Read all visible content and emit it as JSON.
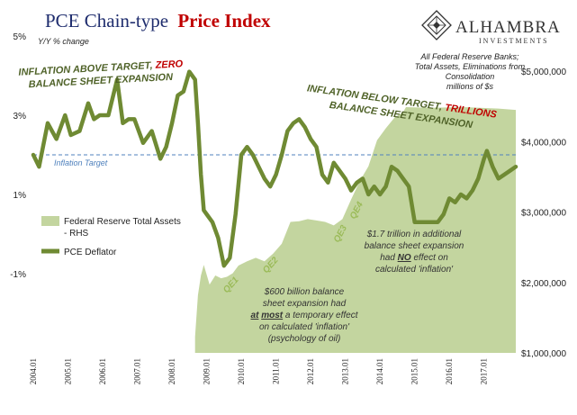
{
  "chart_data": {
    "type": "line",
    "title_prefix": "PCE Chain-type",
    "title_highlight": "Price Index",
    "subtitle_left": "Y/Y % change",
    "right_note": [
      "All Federal Reserve Banks;",
      "Total Assets, Eliminations from",
      "Consolidation",
      "millions of $s"
    ],
    "brand": {
      "name": "ALHAMBRA",
      "tagline": "INVESTMENTS"
    },
    "left_ticks": [
      {
        "v": 5,
        "label": "5%"
      },
      {
        "v": 3,
        "label": "3%"
      },
      {
        "v": 1,
        "label": "1%"
      },
      {
        "v": -1,
        "label": "-1%"
      }
    ],
    "right_ticks": [
      {
        "v": 5000000,
        "label": "$5,000,000"
      },
      {
        "v": 4000000,
        "label": "$4,000,000"
      },
      {
        "v": 3000000,
        "label": "$3,000,000"
      },
      {
        "v": 2000000,
        "label": "$2,000,000"
      },
      {
        "v": 1000000,
        "label": "$1,000,000"
      }
    ],
    "y_left_range": [
      -3,
      5
    ],
    "y_right_range": [
      1000000,
      5500000
    ],
    "x_range": [
      "2004-01",
      "2017-12"
    ],
    "x_ticks": [
      "2004.01",
      "2005.01",
      "2006.01",
      "2007.01",
      "2008.01",
      "2009.01",
      "2010.01",
      "2011.01",
      "2012.01",
      "2013.01",
      "2014.01",
      "2015.01",
      "2016.01",
      "2017.01"
    ],
    "inflation_target": {
      "value": 2.0,
      "label": "Inflation Target"
    },
    "legend": [
      {
        "label_lines": [
          "Federal Reserve Total Assets",
          "- RHS"
        ],
        "color": "#c3d59f"
      },
      {
        "label_lines": [
          "PCE Deflator"
        ],
        "color": "#6f8a33"
      }
    ],
    "series": [
      {
        "name": "Federal Reserve Total Assets - RHS",
        "axis": "right",
        "color": "#c3d59f",
        "x": [
          "2008-09",
          "2008-10",
          "2008-11",
          "2008-12",
          "2009-02",
          "2009-04",
          "2009-06",
          "2009-08",
          "2009-10",
          "2009-12",
          "2010-03",
          "2010-06",
          "2010-09",
          "2010-12",
          "2011-03",
          "2011-06",
          "2011-09",
          "2011-12",
          "2012-03",
          "2012-06",
          "2012-09",
          "2012-12",
          "2013-03",
          "2013-06",
          "2013-09",
          "2013-12",
          "2014-03",
          "2014-06",
          "2014-09",
          "2014-10",
          "2015-06",
          "2016-06",
          "2017-06",
          "2017-12"
        ],
        "values": [
          1230000,
          1820000,
          2100000,
          2250000,
          1970000,
          2100000,
          2060000,
          2080000,
          2130000,
          2240000,
          2300000,
          2350000,
          2300000,
          2410000,
          2550000,
          2860000,
          2870000,
          2900000,
          2880000,
          2860000,
          2810000,
          2900000,
          3180000,
          3440000,
          3650000,
          4020000,
          4190000,
          4340000,
          4420000,
          4490000,
          4480000,
          4490000,
          4470000,
          4450000
        ]
      },
      {
        "name": "PCE Deflator",
        "axis": "left",
        "color": "#6f8a33",
        "x": [
          "2004-01",
          "2004-03",
          "2004-06",
          "2004-09",
          "2004-12",
          "2005-02",
          "2005-05",
          "2005-08",
          "2005-10",
          "2005-12",
          "2006-03",
          "2006-06",
          "2006-08",
          "2006-10",
          "2006-12",
          "2007-03",
          "2007-06",
          "2007-09",
          "2007-11",
          "2008-01",
          "2008-03",
          "2008-05",
          "2008-07",
          "2008-09",
          "2008-10",
          "2008-11",
          "2008-12",
          "2009-01",
          "2009-03",
          "2009-05",
          "2009-07",
          "2009-09",
          "2009-11",
          "2010-01",
          "2010-03",
          "2010-05",
          "2010-07",
          "2010-09",
          "2010-11",
          "2011-01",
          "2011-03",
          "2011-05",
          "2011-07",
          "2011-09",
          "2011-11",
          "2012-01",
          "2012-03",
          "2012-05",
          "2012-07",
          "2012-09",
          "2012-11",
          "2013-01",
          "2013-03",
          "2013-05",
          "2013-07",
          "2013-09",
          "2013-11",
          "2014-01",
          "2014-03",
          "2014-05",
          "2014-07",
          "2014-09",
          "2014-11",
          "2015-01",
          "2015-03",
          "2015-05",
          "2015-07",
          "2015-09",
          "2015-11",
          "2016-01",
          "2016-03",
          "2016-05",
          "2016-07",
          "2016-09",
          "2016-11",
          "2017-01",
          "2017-02",
          "2017-04",
          "2017-06",
          "2017-08",
          "2017-10",
          "2017-12"
        ],
        "values": [
          2.0,
          1.7,
          2.8,
          2.4,
          3.0,
          2.5,
          2.6,
          3.3,
          2.9,
          3.0,
          3.0,
          3.9,
          2.8,
          2.9,
          2.9,
          2.3,
          2.6,
          1.9,
          2.2,
          2.8,
          3.5,
          3.6,
          4.1,
          3.9,
          2.8,
          1.5,
          0.6,
          0.5,
          0.3,
          -0.1,
          -0.8,
          -0.6,
          0.5,
          2.0,
          2.2,
          2.0,
          1.7,
          1.4,
          1.2,
          1.5,
          2.0,
          2.6,
          2.8,
          2.9,
          2.7,
          2.4,
          2.2,
          1.5,
          1.3,
          1.8,
          1.6,
          1.4,
          1.1,
          1.3,
          1.4,
          1.0,
          1.2,
          1.0,
          1.2,
          1.7,
          1.6,
          1.4,
          1.2,
          0.3,
          0.3,
          0.3,
          0.3,
          0.3,
          0.5,
          0.9,
          0.8,
          1.0,
          0.9,
          1.1,
          1.4,
          1.9,
          2.1,
          1.7,
          1.4,
          1.5,
          1.6,
          1.7
        ]
      }
    ],
    "annotations": {
      "left_title_a": "INFLATION ABOVE TARGET,",
      "left_title_b": "ZERO",
      "left_title_c": "BALANCE SHEET EXPANSION",
      "right_title_a": "INFLATION BELOW TARGET,",
      "right_title_b": "TRILLIONS",
      "right_title_c": "BALANCE SHEET EXPANSION",
      "qe1": "QE1",
      "qe2": "QE2",
      "qe3": "QE3",
      "qe4": "QE4",
      "note1": {
        "l1": "$600 billion balance",
        "l2": "sheet expansion had",
        "l3a": "at",
        "l3b": "most",
        "l3c": "a temporary effect",
        "l4": "on calculated 'inflation'",
        "l5": "(psychology of oil)"
      },
      "note2": {
        "l1": "$1.7 trillion in additional",
        "l2": "balance sheet expansion",
        "l3a": "had",
        "l3b": "NO",
        "l3c": "effect on",
        "l4": "calculated 'inflation'"
      }
    },
    "colors": {
      "title": "#1f2d6e",
      "highlight": "#c00000",
      "annot": "#4f6228",
      "qe": "#9bbb59",
      "target": "#4f81bd",
      "axis_text": "#222222"
    }
  }
}
